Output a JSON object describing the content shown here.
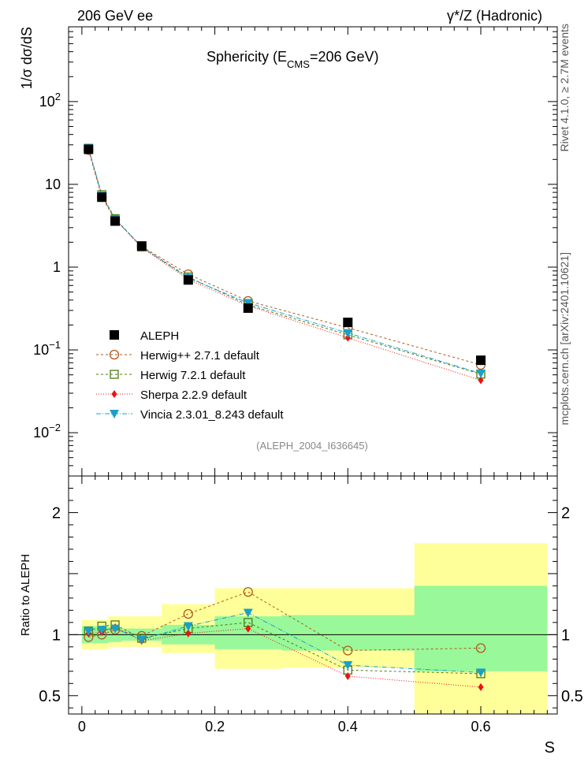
{
  "header": {
    "left": "206 GeV ee",
    "right": "γ*/Z (Hadronic)"
  },
  "side_labels": {
    "top": "Rivet 4.1.0, ≥ 2.7M events",
    "bottom": "mcplots.cern.ch [arXiv:2401.10621]"
  },
  "chart_data": {
    "type": "line",
    "title_main": "Sphericity (E",
    "title_sub": "CMS",
    "title_tail": "=206 GeV)",
    "analysis_id": "(ALEPH_2004_I636645)",
    "xlabel": "S",
    "ylabel_main": "1/σ dσ/dS",
    "ylabel_ratio": "Ratio to ALEPH",
    "xlim": [
      -0.02,
      0.715
    ],
    "ylim_main": [
      0.003,
      800
    ],
    "ylim_ratio": [
      0.35,
      2.3
    ],
    "x_ticks": [
      0,
      0.2,
      0.4,
      0.6
    ],
    "x_tick_labels": [
      "0",
      "0.2",
      "0.4",
      "0.6"
    ],
    "y_main_ticks": [
      {
        "v": 100,
        "base": "10",
        "exp": "2"
      },
      {
        "v": 10,
        "base": "10",
        "exp": ""
      },
      {
        "v": 1,
        "base": "1",
        "exp": ""
      },
      {
        "v": 0.1,
        "base": "10",
        "exp": "−1"
      },
      {
        "v": 0.01,
        "base": "10",
        "exp": "−2"
      }
    ],
    "y_ratio_ticks": [
      {
        "v": 2,
        "label": "2"
      },
      {
        "v": 1,
        "label": "1"
      },
      {
        "v": 0.5,
        "label": "0.5"
      }
    ],
    "bin_edges": [
      0,
      0.02,
      0.04,
      0.06,
      0.12,
      0.2,
      0.3,
      0.5,
      0.7
    ],
    "x": [
      0.01,
      0.03,
      0.05,
      0.09,
      0.16,
      0.25,
      0.4,
      0.6
    ],
    "band_inner": [
      [
        0.93,
        1.07
      ],
      [
        0.93,
        1.07
      ],
      [
        0.94,
        1.06
      ],
      [
        0.95,
        1.05
      ],
      [
        0.92,
        1.08
      ],
      [
        0.88,
        1.15
      ],
      [
        0.87,
        1.16
      ],
      [
        0.7,
        1.4
      ]
    ],
    "band_outer": [
      [
        0.88,
        1.12
      ],
      [
        0.88,
        1.12
      ],
      [
        0.9,
        1.15
      ],
      [
        0.9,
        1.15
      ],
      [
        0.85,
        1.25
      ],
      [
        0.72,
        1.38
      ],
      [
        0.73,
        1.38
      ],
      [
        0.35,
        1.75
      ]
    ],
    "series": [
      {
        "name": "ALEPH",
        "color": "#000000",
        "marker": "filled-square",
        "dash": "",
        "values": [
          26.5,
          7.0,
          3.6,
          1.8,
          0.7,
          0.32,
          0.215,
          0.075
        ],
        "ratio": [
          1,
          1,
          1,
          1,
          1,
          1,
          1,
          1
        ]
      },
      {
        "name": "Herwig++ 2.7.1 default",
        "color": "#b05a1e",
        "marker": "open-circle",
        "dash": "3,3",
        "values": [
          26.0,
          7.0,
          3.75,
          1.78,
          0.82,
          0.39,
          0.185,
          0.066
        ],
        "ratio": [
          0.98,
          1.0,
          1.04,
          0.99,
          1.17,
          1.35,
          0.87,
          0.89
        ]
      },
      {
        "name": "Herwig 7.2.1 default",
        "color": "#4a7c12",
        "marker": "open-square",
        "dash": "3,3",
        "values": [
          27.3,
          7.5,
          3.85,
          1.75,
          0.76,
          0.35,
          0.152,
          0.051
        ],
        "ratio": [
          1.03,
          1.07,
          1.08,
          0.97,
          1.05,
          1.1,
          0.71,
          0.68
        ]
      },
      {
        "name": "Sherpa 2.2.9 default",
        "color": "#ee1111",
        "marker": "filled-diamond",
        "dash": "1,2",
        "values": [
          27.0,
          7.2,
          3.8,
          1.72,
          0.71,
          0.34,
          0.14,
          0.043
        ],
        "ratio": [
          1.01,
          1.02,
          1.06,
          0.95,
          1.01,
          1.05,
          0.66,
          0.57
        ]
      },
      {
        "name": "Vincia 2.3.01_8.243 default",
        "color": "#1aa0c8",
        "marker": "filled-triangle-down",
        "dash": "6,2,1,2",
        "values": [
          27.5,
          7.3,
          3.8,
          1.75,
          0.74,
          0.37,
          0.16,
          0.052
        ],
        "ratio": [
          1.03,
          1.04,
          1.05,
          0.96,
          1.07,
          1.18,
          0.75,
          0.69
        ]
      }
    ]
  }
}
